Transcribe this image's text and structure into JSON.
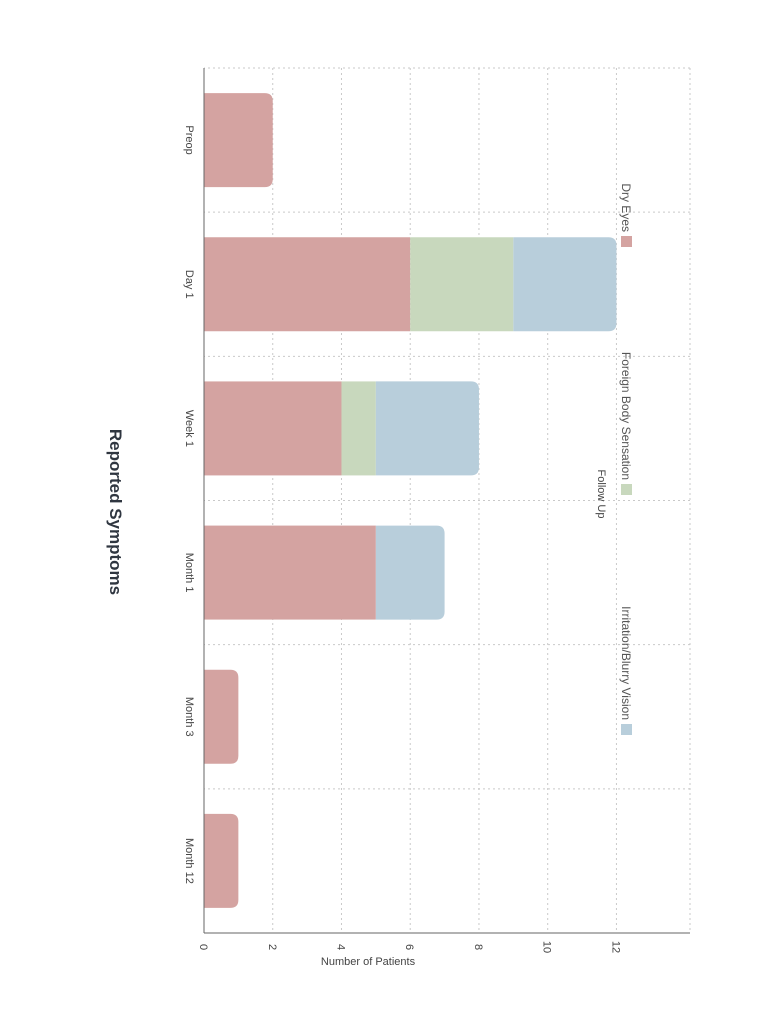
{
  "chart_data": {
    "type": "bar",
    "stacked": true,
    "orientation": "rotated-90-clockwise",
    "title": "Reported Symptoms",
    "xlabel": "Follow Up",
    "ylabel": "Number of Patients",
    "categories": [
      "Preop",
      "Day 1",
      "Week 1",
      "Month 1",
      "Month 3",
      "Month 12"
    ],
    "ylim": [
      0,
      13.5
    ],
    "yticks": [
      0,
      2,
      4,
      6,
      8,
      10,
      12
    ],
    "grid": true,
    "legend_position": "bottom",
    "series": [
      {
        "name": "Dry Eyes",
        "color": "#d4a3a1",
        "values": [
          2,
          6,
          4,
          5,
          1,
          1
        ]
      },
      {
        "name": "Foreign Body Sensation",
        "color": "#c8d8bd",
        "values": [
          0,
          3,
          1,
          0,
          0,
          0
        ]
      },
      {
        "name": "Irritation/Blurry Vision",
        "color": "#b8cedb",
        "values": [
          0,
          3,
          3,
          2,
          0,
          0
        ]
      }
    ]
  }
}
